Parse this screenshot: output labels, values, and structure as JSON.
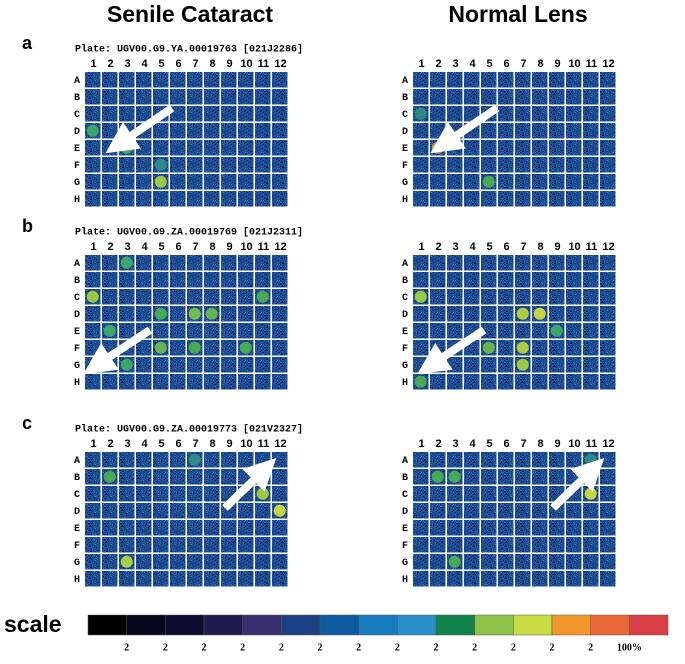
{
  "titles": [
    "Senile Cataract",
    "Normal Lens"
  ],
  "columns": [
    "1",
    "2",
    "3",
    "4",
    "5",
    "6",
    "7",
    "8",
    "9",
    "10",
    "11",
    "12"
  ],
  "rows": [
    "A",
    "B",
    "C",
    "D",
    "E",
    "F",
    "G",
    "H"
  ],
  "panels": [
    {
      "label": "a",
      "plate": "Plate: UGV00.G9.YA.00019763 [021J2286]",
      "spots": [
        [
          {
            "well": "D1",
            "color": "#3fae6a"
          },
          {
            "well": "E3",
            "color": "#4bb24f"
          },
          {
            "well": "G5",
            "color": "#a7d23c"
          },
          {
            "well": "F5",
            "color": "#2f8f86"
          }
        ],
        [
          {
            "well": "E2",
            "color": "#f0962a"
          },
          {
            "well": "G5",
            "color": "#4cb24c"
          },
          {
            "well": "C1",
            "color": "#2f8f86"
          }
        ]
      ]
    },
    {
      "label": "b",
      "plate": "Plate: UGV00.G9.ZA.00019769 [021J2311]",
      "spots": [
        [
          {
            "well": "C1",
            "color": "#a7d23c"
          },
          {
            "well": "D5",
            "color": "#4bb24f"
          },
          {
            "well": "D7",
            "color": "#7cc448"
          },
          {
            "well": "D8",
            "color": "#6cbf4a"
          },
          {
            "well": "C11",
            "color": "#4bb24f"
          },
          {
            "well": "F5",
            "color": "#6cbf4a"
          },
          {
            "well": "F7",
            "color": "#4bb24f"
          },
          {
            "well": "E2",
            "color": "#3fae6a"
          },
          {
            "well": "G3",
            "color": "#3fae6a"
          },
          {
            "well": "F10",
            "color": "#4bb24f"
          },
          {
            "well": "A3",
            "color": "#3fae6a"
          }
        ],
        [
          {
            "well": "C1",
            "color": "#a7d23c"
          },
          {
            "well": "D7",
            "color": "#b9d83a"
          },
          {
            "well": "D8",
            "color": "#d7e03a"
          },
          {
            "well": "F7",
            "color": "#b9d83a"
          },
          {
            "well": "G7",
            "color": "#a7d23c"
          },
          {
            "well": "H1",
            "color": "#4bb24f"
          },
          {
            "well": "E9",
            "color": "#3fae6a"
          },
          {
            "well": "F5",
            "color": "#6cbf4a"
          }
        ]
      ]
    },
    {
      "label": "c",
      "plate": "Plate: UGV00.G9.ZA.00019773 [021V2327]",
      "spots": [
        [
          {
            "well": "B2",
            "color": "#4bb24f"
          },
          {
            "well": "G3",
            "color": "#b9d83a"
          },
          {
            "well": "C11",
            "color": "#a7d23c"
          },
          {
            "well": "D12",
            "color": "#d7e03a"
          },
          {
            "well": "A7",
            "color": "#2f8f86"
          }
        ],
        [
          {
            "well": "B2",
            "color": "#4bb24f"
          },
          {
            "well": "B3",
            "color": "#4bb24f"
          },
          {
            "well": "C11",
            "color": "#d7e03a"
          },
          {
            "well": "G3",
            "color": "#4bb24f"
          },
          {
            "well": "A11",
            "color": "#2f8f86"
          }
        ]
      ]
    }
  ],
  "scale": {
    "title": "scale",
    "colors": [
      "#000000",
      "#06061c",
      "#0c0c30",
      "#201a52",
      "#3a2f6f",
      "#1d3f84",
      "#0d5aa0",
      "#1a7cc0",
      "#2a8fc9",
      "#10824a",
      "#8fc24a",
      "#c9dc44",
      "#f0962a",
      "#e8683a",
      "#d83f47"
    ],
    "labels": [
      "2",
      "2",
      "2",
      "2",
      "2",
      "2",
      "2",
      "2",
      "2",
      "2",
      "2",
      "2",
      "2",
      "100%"
    ]
  }
}
